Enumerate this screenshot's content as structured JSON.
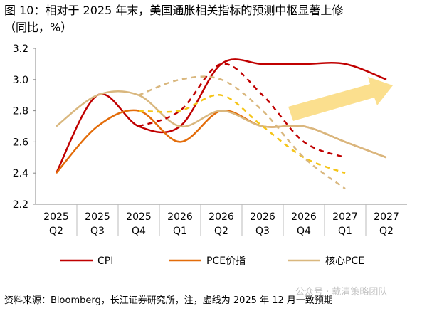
{
  "chart_data": {
    "type": "line",
    "title": "图 10：相对于 2025 年末，美国通胀相关指标的预测中枢显著上修",
    "subtitle": "（同比，%）",
    "source": "资料来源：Bloomberg，长江证券研究所，注，虚线为 2025 年 12 月一致预期",
    "watermark": "公众号 · 戴清策略团队",
    "categories": [
      [
        "2025",
        "Q2"
      ],
      [
        "2025",
        "Q3"
      ],
      [
        "2025",
        "Q4"
      ],
      [
        "2026",
        "Q1"
      ],
      [
        "2026",
        "Q2"
      ],
      [
        "2026",
        "Q3"
      ],
      [
        "2026",
        "Q4"
      ],
      [
        "2027",
        "Q1"
      ],
      [
        "2027",
        "Q2"
      ]
    ],
    "ylim": [
      2.2,
      3.2
    ],
    "yticks": [
      {
        "value": 2.2,
        "label": "2.2"
      },
      {
        "value": 2.4,
        "label": "2.4"
      },
      {
        "value": 2.6,
        "label": "2.6"
      },
      {
        "value": 2.8,
        "label": "2.8"
      },
      {
        "value": 3.0,
        "label": "3.0"
      },
      {
        "value": 3.2,
        "label": "3.2"
      }
    ],
    "series": [
      {
        "name": "CPI",
        "color": "#c00000",
        "values": [
          2.4,
          2.9,
          2.7,
          2.7,
          3.1,
          3.1,
          3.1,
          3.1,
          3.0
        ]
      },
      {
        "name": "PCE价指",
        "color": "#e36c09",
        "values": [
          2.4,
          2.7,
          2.8,
          2.6,
          2.8,
          2.7,
          2.7,
          2.6,
          2.5
        ]
      },
      {
        "name": "核心PCE",
        "color": "#d9b77e",
        "values": [
          2.7,
          2.9,
          2.9,
          2.7,
          2.8,
          2.7,
          2.7,
          2.6,
          2.5
        ]
      }
    ],
    "dashed_series": [
      {
        "color": "#c00000",
        "values": [
          null,
          null,
          2.7,
          2.8,
          3.1,
          2.9,
          2.6,
          2.5,
          null
        ]
      },
      {
        "color": "#f5c518",
        "values": [
          null,
          null,
          2.8,
          2.8,
          2.9,
          2.7,
          2.5,
          2.4,
          null
        ]
      },
      {
        "color": "#d9b77e",
        "values": [
          null,
          null,
          2.9,
          3.0,
          3.0,
          2.8,
          2.5,
          2.3,
          null
        ]
      }
    ]
  }
}
